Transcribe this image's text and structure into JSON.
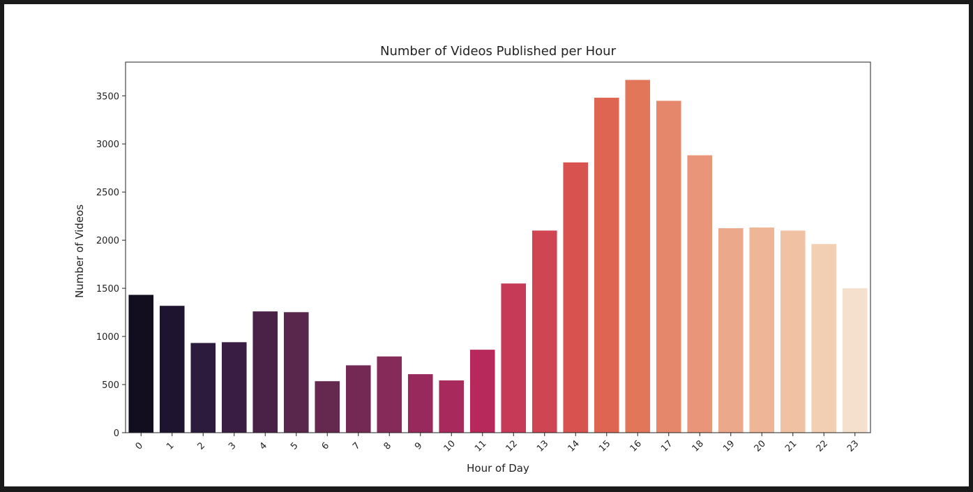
{
  "chart_data": {
    "type": "bar",
    "title": "Number of Videos Published per Hour",
    "xlabel": "Hour of Day",
    "ylabel": "Number of Videos",
    "categories": [
      "0",
      "1",
      "2",
      "3",
      "4",
      "5",
      "6",
      "7",
      "8",
      "9",
      "10",
      "11",
      "12",
      "13",
      "14",
      "15",
      "16",
      "17",
      "18",
      "19",
      "20",
      "21",
      "22",
      "23"
    ],
    "values": [
      1432,
      1318,
      932,
      940,
      1260,
      1252,
      535,
      700,
      792,
      608,
      543,
      862,
      1550,
      2100,
      2808,
      3480,
      3665,
      3448,
      2882,
      2124,
      2132,
      2100,
      1960,
      1500
    ],
    "colors": [
      "#120d1f",
      "#1f142f",
      "#2c1b3c",
      "#3a1d42",
      "#4a2147",
      "#59264c",
      "#65284f",
      "#742954",
      "#862a59",
      "#97295c",
      "#a8295c",
      "#b7295b",
      "#c63a58",
      "#cf4551",
      "#d8534f",
      "#de6552",
      "#e27659",
      "#e5876a",
      "#e8957a",
      "#eba88b",
      "#eeb596",
      "#f0c1a3",
      "#f2ceb2",
      "#f4e0cc"
    ],
    "yticks": [
      0,
      500,
      1000,
      1500,
      2000,
      2500,
      3000,
      3500
    ],
    "ylim": [
      0,
      3850
    ],
    "grid": false,
    "legend": "none"
  }
}
